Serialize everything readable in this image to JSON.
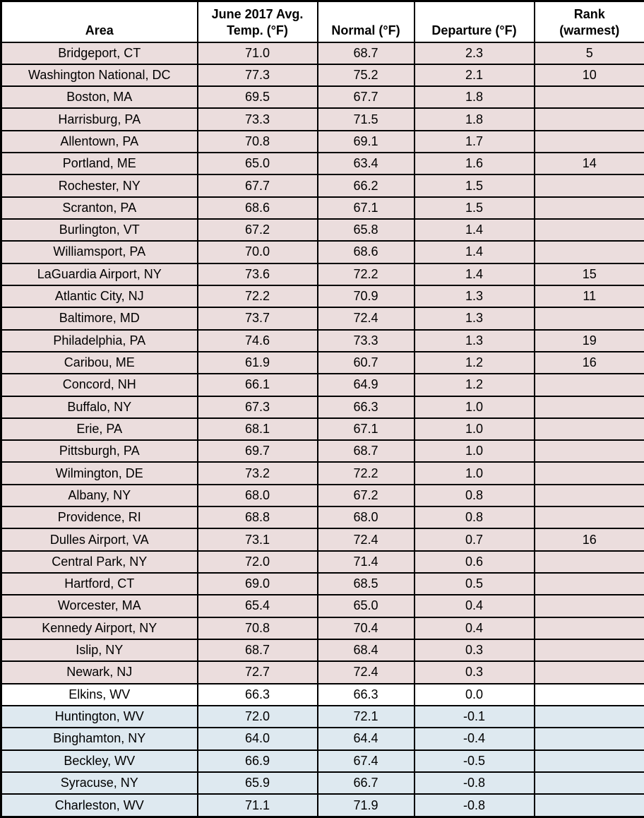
{
  "colors": {
    "warm_row_bg": "#EBDDDD",
    "neutral_row_bg": "#FFFFFF",
    "cool_row_bg": "#DEE9F0",
    "header_bg": "#FFFFFF",
    "border": "#000000",
    "text": "#000000"
  },
  "chart_data": {
    "type": "table",
    "legend_rule": "rows with positive departure shaded warm pink, zero departure white, negative departure shaded cool blue",
    "columns": [
      {
        "key": "area",
        "label": "Area",
        "lines": [
          "Area"
        ]
      },
      {
        "key": "avg_temp",
        "label": "June 2017 Avg. Temp. (°F)",
        "lines": [
          "June 2017 Avg.",
          "Temp. (°F)"
        ]
      },
      {
        "key": "normal",
        "label": "Normal (°F)",
        "lines": [
          "Normal (°F)"
        ]
      },
      {
        "key": "departure",
        "label": "Departure (°F)",
        "lines": [
          "Departure (°F)"
        ]
      },
      {
        "key": "rank",
        "label": "Rank (warmest)",
        "lines": [
          "Rank",
          "(warmest)"
        ]
      }
    ],
    "rows": [
      {
        "area": "Bridgeport, CT",
        "avg_temp": "71.0",
        "normal": "68.7",
        "departure": "2.3",
        "rank": "5"
      },
      {
        "area": "Washington National, DC",
        "avg_temp": "77.3",
        "normal": "75.2",
        "departure": "2.1",
        "rank": "10"
      },
      {
        "area": "Boston, MA",
        "avg_temp": "69.5",
        "normal": "67.7",
        "departure": "1.8",
        "rank": ""
      },
      {
        "area": "Harrisburg, PA",
        "avg_temp": "73.3",
        "normal": "71.5",
        "departure": "1.8",
        "rank": ""
      },
      {
        "area": "Allentown, PA",
        "avg_temp": "70.8",
        "normal": "69.1",
        "departure": "1.7",
        "rank": ""
      },
      {
        "area": "Portland, ME",
        "avg_temp": "65.0",
        "normal": "63.4",
        "departure": "1.6",
        "rank": "14"
      },
      {
        "area": "Rochester, NY",
        "avg_temp": "67.7",
        "normal": "66.2",
        "departure": "1.5",
        "rank": ""
      },
      {
        "area": "Scranton, PA",
        "avg_temp": "68.6",
        "normal": "67.1",
        "departure": "1.5",
        "rank": ""
      },
      {
        "area": "Burlington, VT",
        "avg_temp": "67.2",
        "normal": "65.8",
        "departure": "1.4",
        "rank": ""
      },
      {
        "area": "Williamsport, PA",
        "avg_temp": "70.0",
        "normal": "68.6",
        "departure": "1.4",
        "rank": ""
      },
      {
        "area": "LaGuardia Airport, NY",
        "avg_temp": "73.6",
        "normal": "72.2",
        "departure": "1.4",
        "rank": "15"
      },
      {
        "area": "Atlantic City, NJ",
        "avg_temp": "72.2",
        "normal": "70.9",
        "departure": "1.3",
        "rank": "11"
      },
      {
        "area": "Baltimore, MD",
        "avg_temp": "73.7",
        "normal": "72.4",
        "departure": "1.3",
        "rank": ""
      },
      {
        "area": "Philadelphia, PA",
        "avg_temp": "74.6",
        "normal": "73.3",
        "departure": "1.3",
        "rank": "19"
      },
      {
        "area": "Caribou, ME",
        "avg_temp": "61.9",
        "normal": "60.7",
        "departure": "1.2",
        "rank": "16"
      },
      {
        "area": "Concord, NH",
        "avg_temp": "66.1",
        "normal": "64.9",
        "departure": "1.2",
        "rank": ""
      },
      {
        "area": "Buffalo, NY",
        "avg_temp": "67.3",
        "normal": "66.3",
        "departure": "1.0",
        "rank": ""
      },
      {
        "area": "Erie, PA",
        "avg_temp": "68.1",
        "normal": "67.1",
        "departure": "1.0",
        "rank": ""
      },
      {
        "area": "Pittsburgh, PA",
        "avg_temp": "69.7",
        "normal": "68.7",
        "departure": "1.0",
        "rank": ""
      },
      {
        "area": "Wilmington, DE",
        "avg_temp": "73.2",
        "normal": "72.2",
        "departure": "1.0",
        "rank": ""
      },
      {
        "area": "Albany, NY",
        "avg_temp": "68.0",
        "normal": "67.2",
        "departure": "0.8",
        "rank": ""
      },
      {
        "area": "Providence, RI",
        "avg_temp": "68.8",
        "normal": "68.0",
        "departure": "0.8",
        "rank": ""
      },
      {
        "area": "Dulles Airport, VA",
        "avg_temp": "73.1",
        "normal": "72.4",
        "departure": "0.7",
        "rank": "16"
      },
      {
        "area": "Central Park, NY",
        "avg_temp": "72.0",
        "normal": "71.4",
        "departure": "0.6",
        "rank": ""
      },
      {
        "area": "Hartford, CT",
        "avg_temp": "69.0",
        "normal": "68.5",
        "departure": "0.5",
        "rank": ""
      },
      {
        "area": "Worcester, MA",
        "avg_temp": "65.4",
        "normal": "65.0",
        "departure": "0.4",
        "rank": ""
      },
      {
        "area": "Kennedy Airport, NY",
        "avg_temp": "70.8",
        "normal": "70.4",
        "departure": "0.4",
        "rank": ""
      },
      {
        "area": "Islip, NY",
        "avg_temp": "68.7",
        "normal": "68.4",
        "departure": "0.3",
        "rank": ""
      },
      {
        "area": "Newark, NJ",
        "avg_temp": "72.7",
        "normal": "72.4",
        "departure": "0.3",
        "rank": ""
      },
      {
        "area": "Elkins, WV",
        "avg_temp": "66.3",
        "normal": "66.3",
        "departure": "0.0",
        "rank": ""
      },
      {
        "area": "Huntington, WV",
        "avg_temp": "72.0",
        "normal": "72.1",
        "departure": "-0.1",
        "rank": ""
      },
      {
        "area": "Binghamton, NY",
        "avg_temp": "64.0",
        "normal": "64.4",
        "departure": "-0.4",
        "rank": ""
      },
      {
        "area": "Beckley, WV",
        "avg_temp": "66.9",
        "normal": "67.4",
        "departure": "-0.5",
        "rank": ""
      },
      {
        "area": "Syracuse, NY",
        "avg_temp": "65.9",
        "normal": "66.7",
        "departure": "-0.8",
        "rank": ""
      },
      {
        "area": "Charleston, WV",
        "avg_temp": "71.1",
        "normal": "71.9",
        "departure": "-0.8",
        "rank": ""
      }
    ]
  }
}
